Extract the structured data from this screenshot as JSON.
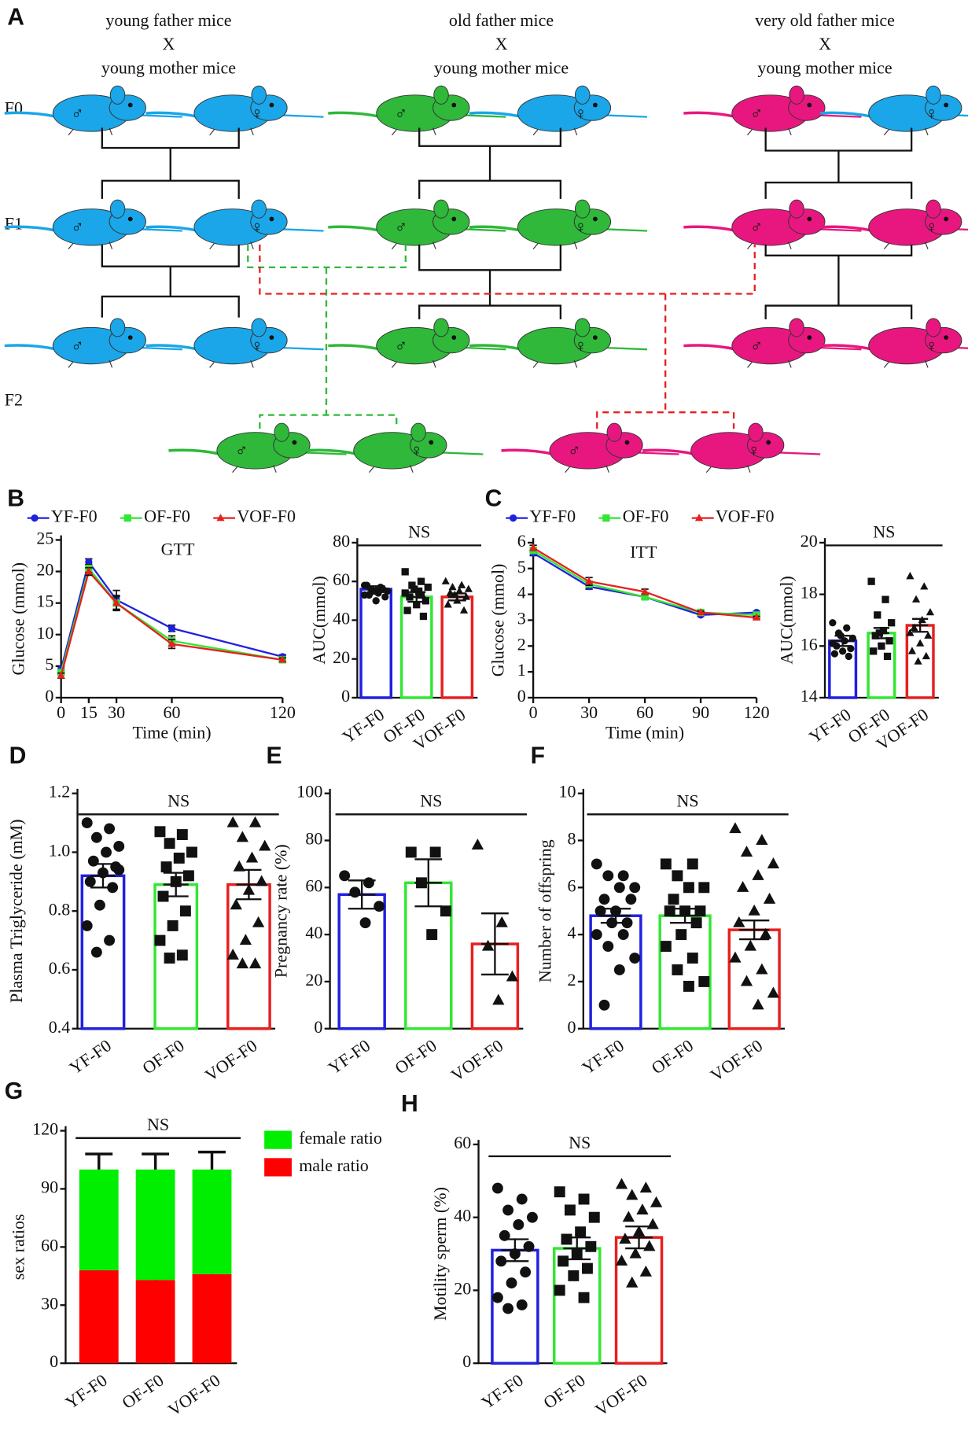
{
  "panel_a": {
    "label": "A",
    "groups": [
      {
        "line1": "young father mice",
        "cross": "X",
        "line2": "young mother mice"
      },
      {
        "line1": "old father mice",
        "cross": "X",
        "line2": "young mother mice"
      },
      {
        "line1": "very old father mice",
        "cross": "X",
        "line2": "young mother mice"
      }
    ],
    "generations": [
      "F0",
      "F1",
      "F2"
    ],
    "male": "♂",
    "female": "♀"
  },
  "chart_data": [
    {
      "type": "line",
      "panel": "B",
      "title": "GTT",
      "xlabel": "Time (min)",
      "ylabel": "Glucose (mmol)",
      "x": [
        0,
        15,
        30,
        60,
        120
      ],
      "xlim": [
        0,
        120
      ],
      "xticks": [
        0,
        15,
        30,
        60,
        120
      ],
      "ylim": [
        0,
        25
      ],
      "yticks": [
        0,
        5,
        10,
        15,
        20,
        25
      ],
      "series": [
        {
          "name": "YF-F0",
          "color": "#2020e0",
          "marker": "circle",
          "values": [
            4.5,
            21.5,
            15.5,
            11,
            6.5
          ],
          "errors": [
            0.4,
            0.5,
            1.5,
            0.5,
            0.3
          ]
        },
        {
          "name": "OF-F0",
          "color": "#33e633",
          "marker": "square",
          "values": [
            4,
            20.5,
            15,
            9,
            6
          ],
          "errors": [
            0.4,
            0.6,
            1.2,
            0.8,
            0.3
          ]
        },
        {
          "name": "VOF-F0",
          "color": "#e62020",
          "marker": "triangle",
          "values": [
            3.5,
            20,
            15,
            8.5,
            6
          ],
          "errors": [
            0.4,
            0.6,
            1.0,
            0.7,
            0.3
          ]
        }
      ]
    },
    {
      "type": "bar",
      "ylabel": "AUC(mmol)",
      "annotation": "NS",
      "categories": [
        "YF-F0",
        "OF-F0",
        "VOF-F0"
      ],
      "colors": [
        "#2020e0",
        "#33e633",
        "#e62020"
      ],
      "values": [
        56,
        52,
        52
      ],
      "errors": [
        1.5,
        2.5,
        1.8
      ],
      "points": [
        [
          58,
          57,
          56,
          55,
          54,
          53,
          52,
          50,
          58,
          56,
          55,
          53
        ],
        [
          65,
          60,
          58,
          57,
          55,
          52,
          50,
          48,
          45,
          42,
          56,
          54,
          53
        ],
        [
          60,
          58,
          57,
          56,
          55,
          54,
          52,
          50,
          48,
          45,
          53
        ]
      ],
      "ylim": [
        0,
        80
      ],
      "yticks": [
        0,
        20,
        40,
        60,
        80
      ]
    },
    {
      "type": "line",
      "panel": "C",
      "title": "ITT",
      "xlabel": "Time (min)",
      "ylabel": "Glucose (mmol)",
      "x": [
        0,
        30,
        60,
        90,
        120
      ],
      "xlim": [
        0,
        120
      ],
      "xticks": [
        0,
        30,
        60,
        90,
        120
      ],
      "ylim": [
        0,
        6
      ],
      "yticks": [
        0,
        1,
        2,
        3,
        4,
        5,
        6
      ],
      "series": [
        {
          "name": "YF-F0",
          "color": "#2020e0",
          "marker": "circle",
          "values": [
            5.6,
            4.3,
            3.9,
            3.2,
            3.3
          ],
          "errors": [
            0.1,
            0.1,
            0.1,
            0.05,
            0.05
          ]
        },
        {
          "name": "OF-F0",
          "color": "#33e633",
          "marker": "square",
          "values": [
            5.7,
            4.4,
            3.9,
            3.3,
            3.2
          ],
          "errors": [
            0.1,
            0.1,
            0.1,
            0.05,
            0.05
          ]
        },
        {
          "name": "VOF-F0",
          "color": "#e62020",
          "marker": "triangle",
          "values": [
            5.8,
            4.5,
            4.1,
            3.3,
            3.1
          ],
          "errors": [
            0.1,
            0.15,
            0.1,
            0.05,
            0.05
          ]
        }
      ]
    },
    {
      "type": "bar",
      "ylabel": "AUC(mmol)",
      "annotation": "NS",
      "categories": [
        "YF-F0",
        "OF-F0",
        "VOF-F0"
      ],
      "colors": [
        "#2020e0",
        "#33e633",
        "#e62020"
      ],
      "values": [
        16.2,
        16.5,
        16.8
      ],
      "errors": [
        0.2,
        0.2,
        0.25
      ],
      "points": [
        [
          16.9,
          16.7,
          16.5,
          16.3,
          16.2,
          16.0,
          15.9,
          15.8,
          15.7,
          15.6,
          16.4,
          16.1
        ],
        [
          18.5,
          17.8,
          17.2,
          16.9,
          16.6,
          16.4,
          16.2,
          16.0,
          15.8,
          15.6,
          16.5
        ],
        [
          18.7,
          18.3,
          17.8,
          17.3,
          17.0,
          16.7,
          16.4,
          16.1,
          15.8,
          15.6,
          15.4,
          16.5
        ]
      ],
      "ylim": [
        14,
        20
      ],
      "yticks": [
        14,
        16,
        18,
        20
      ]
    },
    {
      "type": "bar",
      "panel": "D",
      "ylabel": "Plasma Triglyceride (mM)",
      "annotation": "NS",
      "categories": [
        "YF-F0",
        "OF-F0",
        "VOF-F0"
      ],
      "colors": [
        "#2020e0",
        "#33e633",
        "#e62020"
      ],
      "values": [
        0.92,
        0.89,
        0.89
      ],
      "errors": [
        0.04,
        0.04,
        0.05
      ],
      "points": [
        [
          1.1,
          1.08,
          1.05,
          1.02,
          1.0,
          0.97,
          0.95,
          0.93,
          0.9,
          0.88,
          0.82,
          0.75,
          0.7,
          0.66,
          0.94
        ],
        [
          1.07,
          1.06,
          1.03,
          1.0,
          0.98,
          0.95,
          0.92,
          0.9,
          0.85,
          0.8,
          0.75,
          0.7,
          0.65,
          0.64
        ],
        [
          1.1,
          1.1,
          1.05,
          1.02,
          0.98,
          0.95,
          0.9,
          0.87,
          0.82,
          0.76,
          0.7,
          0.65,
          0.62,
          0.62
        ]
      ],
      "ylim": [
        0.4,
        1.2
      ],
      "yticks": [
        0.4,
        0.6,
        0.8,
        {
          "value": 1,
          "label": "1.0"
        },
        1.2
      ]
    },
    {
      "type": "bar",
      "panel": "E",
      "ylabel": "Pregnancy rate (%)",
      "annotation": "NS",
      "categories": [
        "YF-F0",
        "OF-F0",
        "VOF-F0"
      ],
      "colors": [
        "#2020e0",
        "#33e633",
        "#e62020"
      ],
      "values": [
        57,
        62,
        36
      ],
      "errors": [
        6,
        10,
        13
      ],
      "points": [
        [
          65,
          62,
          58,
          52,
          45
        ],
        [
          75,
          75,
          62,
          50,
          40
        ],
        [
          78,
          45,
          35,
          22,
          12
        ]
      ],
      "ylim": [
        0,
        100
      ],
      "yticks": [
        0,
        20,
        40,
        60,
        80,
        100
      ]
    },
    {
      "type": "bar",
      "panel": "F",
      "ylabel": "Number of offspring",
      "annotation": "NS",
      "categories": [
        "YF-F0",
        "OF-F0",
        "VOF-F0"
      ],
      "colors": [
        "#2020e0",
        "#33e633",
        "#e62020"
      ],
      "values": [
        4.8,
        4.8,
        4.2
      ],
      "errors": [
        0.3,
        0.3,
        0.4
      ],
      "points": [
        [
          7,
          6.5,
          6.5,
          6,
          6,
          5.5,
          5.5,
          5,
          5,
          4.5,
          4.5,
          4,
          4,
          3.5,
          3,
          2.5,
          1
        ],
        [
          7,
          7,
          6.5,
          6,
          6,
          5.5,
          5,
          5,
          5,
          4.5,
          4,
          3.5,
          3,
          2.5,
          2,
          1.8
        ],
        [
          8.5,
          8,
          7.5,
          7,
          6.5,
          6,
          5.5,
          5,
          4.5,
          4,
          3.5,
          3,
          2.5,
          2,
          1.5,
          1
        ]
      ],
      "ylim": [
        0,
        10
      ],
      "yticks": [
        0,
        2,
        4,
        6,
        8,
        10
      ]
    },
    {
      "type": "stacked_bar",
      "panel": "G",
      "ylabel": "sex ratios",
      "annotation": "NS",
      "categories": [
        "YF-F0",
        "OF-F0",
        "VOF-F0"
      ],
      "series": [
        {
          "name": "male ratio",
          "color": "#ff0000",
          "values": [
            48,
            43,
            46
          ],
          "errors": [
            8,
            8,
            9
          ]
        },
        {
          "name": "female ratio",
          "color": "#00ee00",
          "values": [
            52,
            57,
            54
          ],
          "errors": [
            8,
            8,
            9
          ]
        }
      ],
      "ylim": [
        0,
        120
      ],
      "yticks": [
        0,
        30,
        60,
        90,
        120
      ]
    },
    {
      "type": "bar",
      "panel": "H",
      "ylabel": "Motility sperm (%)",
      "annotation": "NS",
      "categories": [
        "YF-F0",
        "OF-F0",
        "VOF-F0"
      ],
      "colors": [
        "#2020e0",
        "#33e633",
        "#e62020"
      ],
      "values": [
        31,
        31.5,
        34.5
      ],
      "errors": [
        3,
        3,
        3
      ],
      "points": [
        [
          48,
          45,
          42,
          40,
          38,
          35,
          32,
          30,
          28,
          25,
          22,
          18,
          16,
          15
        ],
        [
          47,
          45,
          42,
          40,
          36,
          34,
          32,
          30,
          28,
          26,
          24,
          20,
          18
        ],
        [
          49,
          48,
          46,
          44,
          42,
          40,
          38,
          36,
          34,
          32,
          30,
          28,
          25,
          22
        ]
      ],
      "ylim": [
        0,
        60
      ],
      "yticks": [
        0,
        20,
        40,
        60
      ]
    }
  ]
}
